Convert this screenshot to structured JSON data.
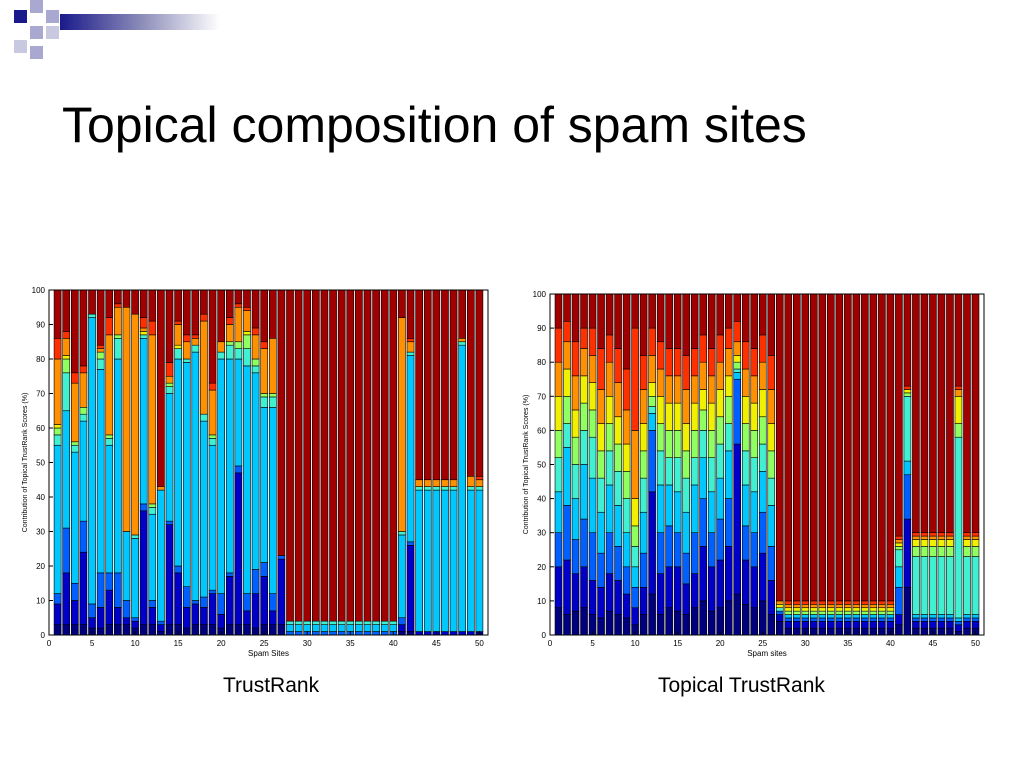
{
  "slide": {
    "title": "Topical composition of spam sites",
    "template_colors": {
      "dark": "#1a1a8c",
      "mid": "#8a8ab8",
      "light": "#c0c0dc"
    }
  },
  "chart_data": [
    {
      "type": "bar",
      "stacked": true,
      "title": "",
      "caption": "TrustRank",
      "xlabel": "Spam Sites",
      "ylabel": "Contribution of Topical TrustRank Scores (%)",
      "ylim": [
        0,
        100
      ],
      "xlim": [
        0,
        51
      ],
      "xticks": [
        0,
        5,
        10,
        15,
        20,
        25,
        30,
        35,
        40,
        45,
        50
      ],
      "yticks": [
        0,
        10,
        20,
        30,
        40,
        50,
        60,
        70,
        80,
        90,
        100
      ],
      "grid": false,
      "colors": [
        "#00007f",
        "#0000c8",
        "#0060ff",
        "#00c8ff",
        "#40f0d0",
        "#90ff60",
        "#f0f000",
        "#ff9000",
        "#ff3000",
        "#a00000"
      ],
      "x": [
        1,
        2,
        3,
        4,
        5,
        6,
        7,
        8,
        9,
        10,
        11,
        12,
        13,
        14,
        15,
        16,
        17,
        18,
        19,
        20,
        21,
        22,
        23,
        24,
        25,
        26,
        27,
        28,
        29,
        30,
        31,
        32,
        33,
        34,
        35,
        36,
        37,
        38,
        39,
        40,
        41,
        42,
        43,
        44,
        45,
        46,
        47,
        48,
        49,
        50
      ],
      "cumulative": [
        [
          3,
          3,
          3,
          3,
          2,
          2,
          3,
          3,
          3,
          2,
          3,
          3,
          1,
          3,
          3,
          2,
          3,
          3,
          3,
          2,
          3,
          3,
          3,
          2,
          3,
          3,
          3,
          0,
          0,
          0,
          0,
          0,
          0,
          0,
          0,
          0,
          0,
          0,
          0,
          0,
          1,
          1,
          0,
          0,
          0,
          0,
          0,
          0,
          0,
          1
        ],
        [
          9,
          18,
          10,
          24,
          5,
          8,
          13,
          8,
          5,
          4,
          36,
          8,
          3,
          32,
          18,
          8,
          9,
          8,
          12,
          6,
          17,
          47,
          7,
          12,
          17,
          7,
          22,
          0,
          0,
          0,
          0,
          0,
          0,
          0,
          0,
          0,
          0,
          0,
          0,
          0,
          3,
          26,
          1,
          1,
          1,
          1,
          1,
          1,
          1,
          1
        ],
        [
          12,
          31,
          15,
          33,
          9,
          18,
          18,
          18,
          10,
          5,
          38,
          10,
          4,
          33,
          20,
          14,
          10,
          11,
          13,
          12,
          18,
          49,
          12,
          19,
          21,
          12,
          23,
          1,
          1,
          1,
          1,
          1,
          1,
          1,
          1,
          1,
          1,
          1,
          1,
          1,
          5,
          27,
          1,
          1,
          1,
          1,
          1,
          1,
          1,
          1
        ],
        [
          55,
          65,
          53,
          62,
          92,
          77,
          55,
          80,
          30,
          28,
          86,
          35,
          42,
          70,
          80,
          79,
          82,
          62,
          55,
          80,
          80,
          80,
          78,
          76,
          66,
          66,
          1,
          3,
          3,
          3,
          3,
          3,
          3,
          3,
          3,
          3,
          3,
          3,
          3,
          3,
          29,
          81,
          42,
          42,
          42,
          42,
          42,
          84,
          42,
          42
        ],
        [
          58,
          76,
          55,
          64,
          93,
          80,
          57,
          86,
          30,
          29,
          87,
          37,
          42,
          72,
          83,
          80,
          84,
          64,
          57,
          82,
          84,
          83,
          83,
          78,
          69,
          69,
          2,
          4,
          4,
          4,
          4,
          4,
          4,
          4,
          4,
          4,
          4,
          4,
          4,
          4,
          30,
          82,
          43,
          43,
          43,
          43,
          43,
          85,
          43,
          43
        ],
        [
          60,
          80,
          56,
          66,
          93,
          82,
          58,
          87,
          30,
          29,
          87,
          38,
          42,
          73,
          83,
          80,
          84,
          64,
          58,
          82,
          85,
          85,
          87,
          80,
          70,
          70,
          3,
          4,
          4,
          4,
          4,
          4,
          4,
          4,
          4,
          4,
          4,
          4,
          4,
          4,
          30,
          82,
          43,
          43,
          43,
          43,
          43,
          85,
          43,
          43
        ],
        [
          61,
          81,
          56,
          66,
          93,
          82,
          58,
          87,
          30,
          29,
          88,
          38,
          42,
          73,
          84,
          80,
          84,
          64,
          58,
          82,
          85,
          85,
          88,
          80,
          70,
          70,
          3,
          4,
          4,
          4,
          4,
          4,
          4,
          4,
          4,
          4,
          4,
          4,
          4,
          4,
          30,
          82,
          43,
          43,
          43,
          43,
          43,
          85,
          43,
          43
        ],
        [
          80,
          86,
          73,
          76,
          93,
          83,
          87,
          95,
          95,
          93,
          89,
          87,
          43,
          75,
          90,
          85,
          86,
          91,
          71,
          85,
          90,
          95,
          94,
          87,
          83,
          86,
          4,
          4,
          4,
          4,
          4,
          4,
          4,
          4,
          4,
          4,
          4,
          4,
          4,
          4,
          92,
          85,
          45,
          45,
          45,
          45,
          45,
          86,
          46,
          45
        ],
        [
          86,
          88,
          76,
          78,
          93,
          84,
          92,
          96,
          95,
          93,
          92,
          91,
          43,
          79,
          91,
          87,
          87,
          93,
          73,
          85,
          92,
          96,
          95,
          89,
          85,
          86,
          4,
          4,
          4,
          4,
          4,
          4,
          4,
          4,
          4,
          4,
          4,
          4,
          4,
          4,
          92,
          86,
          45,
          45,
          45,
          45,
          45,
          86,
          46,
          46
        ],
        [
          100,
          100,
          100,
          100,
          100,
          100,
          100,
          100,
          100,
          100,
          100,
          100,
          100,
          100,
          100,
          100,
          100,
          100,
          100,
          100,
          100,
          100,
          100,
          100,
          100,
          100,
          100,
          100,
          100,
          100,
          100,
          100,
          100,
          100,
          100,
          100,
          100,
          100,
          100,
          100,
          100,
          100,
          100,
          100,
          100,
          100,
          100,
          100,
          100,
          100
        ]
      ]
    },
    {
      "type": "bar",
      "stacked": true,
      "title": "",
      "caption": "Topical TrustRank",
      "xlabel": "Spam sites",
      "ylabel": "Contribution of Topical TrustRank Scores (%)",
      "ylim": [
        0,
        100
      ],
      "xlim": [
        0,
        51
      ],
      "xticks": [
        0,
        5,
        10,
        15,
        20,
        25,
        30,
        35,
        40,
        45,
        50
      ],
      "yticks": [
        0,
        10,
        20,
        30,
        40,
        50,
        60,
        70,
        80,
        90,
        100
      ],
      "grid": false,
      "colors": [
        "#00007f",
        "#0000c8",
        "#0060ff",
        "#00c8ff",
        "#40f0d0",
        "#90ff60",
        "#f0f000",
        "#ff9000",
        "#ff3000",
        "#a00000"
      ],
      "x": [
        1,
        2,
        3,
        4,
        5,
        6,
        7,
        8,
        9,
        10,
        11,
        12,
        13,
        14,
        15,
        16,
        17,
        18,
        19,
        20,
        21,
        22,
        23,
        24,
        25,
        26,
        27,
        28,
        29,
        30,
        31,
        32,
        33,
        34,
        35,
        36,
        37,
        38,
        39,
        40,
        41,
        42,
        43,
        44,
        45,
        46,
        47,
        48,
        49,
        50
      ],
      "cumulative": [
        [
          8,
          6,
          7,
          8,
          6,
          5,
          7,
          6,
          5,
          3,
          6,
          12,
          6,
          8,
          7,
          6,
          8,
          10,
          7,
          8,
          10,
          12,
          9,
          8,
          10,
          6,
          4,
          2,
          2,
          2,
          2,
          2,
          2,
          2,
          2,
          2,
          2,
          2,
          2,
          2,
          3,
          14,
          2,
          2,
          2,
          2,
          2,
          1,
          2,
          2
        ],
        [
          20,
          22,
          18,
          20,
          16,
          14,
          18,
          16,
          12,
          8,
          14,
          42,
          18,
          20,
          20,
          15,
          18,
          26,
          20,
          22,
          26,
          56,
          22,
          20,
          24,
          16,
          6,
          4,
          4,
          4,
          4,
          4,
          4,
          4,
          4,
          4,
          4,
          4,
          4,
          4,
          6,
          34,
          4,
          4,
          4,
          4,
          4,
          3,
          4,
          4
        ],
        [
          30,
          38,
          28,
          34,
          30,
          24,
          30,
          26,
          20,
          14,
          24,
          60,
          30,
          32,
          30,
          24,
          30,
          40,
          30,
          34,
          40,
          75,
          32,
          30,
          36,
          26,
          7,
          5,
          5,
          5,
          5,
          5,
          5,
          5,
          5,
          5,
          5,
          5,
          5,
          5,
          14,
          47,
          5,
          5,
          5,
          5,
          5,
          4,
          5,
          5
        ],
        [
          42,
          55,
          40,
          50,
          46,
          36,
          44,
          38,
          30,
          20,
          36,
          65,
          44,
          44,
          42,
          36,
          44,
          52,
          42,
          46,
          54,
          77,
          44,
          42,
          48,
          38,
          7,
          6,
          6,
          6,
          6,
          6,
          6,
          6,
          6,
          6,
          6,
          6,
          6,
          6,
          20,
          51,
          6,
          6,
          6,
          6,
          6,
          5,
          6,
          6
        ],
        [
          52,
          62,
          50,
          60,
          58,
          46,
          54,
          48,
          40,
          26,
          46,
          67,
          54,
          52,
          52,
          46,
          52,
          60,
          52,
          56,
          62,
          78,
          54,
          52,
          56,
          46,
          8,
          6,
          6,
          6,
          6,
          6,
          6,
          6,
          6,
          6,
          6,
          6,
          6,
          6,
          25,
          70,
          23,
          23,
          23,
          23,
          23,
          58,
          23,
          23
        ],
        [
          60,
          70,
          58,
          68,
          66,
          54,
          62,
          56,
          48,
          32,
          54,
          70,
          62,
          60,
          60,
          54,
          60,
          66,
          60,
          64,
          70,
          80,
          62,
          60,
          64,
          54,
          8,
          7,
          7,
          7,
          7,
          7,
          7,
          7,
          7,
          7,
          7,
          7,
          7,
          7,
          26,
          71,
          26,
          26,
          26,
          26,
          26,
          62,
          26,
          26
        ],
        [
          70,
          78,
          66,
          76,
          74,
          62,
          70,
          64,
          56,
          40,
          62,
          74,
          70,
          68,
          68,
          62,
          68,
          72,
          68,
          72,
          76,
          82,
          70,
          68,
          72,
          62,
          9,
          8,
          8,
          8,
          8,
          8,
          8,
          8,
          8,
          8,
          8,
          8,
          8,
          8,
          27,
          72,
          28,
          28,
          28,
          28,
          28,
          70,
          28,
          28
        ],
        [
          80,
          86,
          76,
          84,
          82,
          72,
          80,
          74,
          66,
          60,
          72,
          82,
          78,
          76,
          76,
          72,
          76,
          80,
          76,
          80,
          84,
          86,
          78,
          76,
          80,
          72,
          10,
          9,
          9,
          9,
          9,
          9,
          9,
          9,
          9,
          9,
          9,
          9,
          9,
          9,
          28,
          72,
          29,
          29,
          29,
          29,
          29,
          72,
          29,
          29
        ],
        [
          90,
          92,
          86,
          90,
          90,
          84,
          88,
          84,
          78,
          90,
          82,
          90,
          86,
          84,
          84,
          82,
          84,
          88,
          84,
          88,
          90,
          92,
          86,
          84,
          88,
          82,
          10,
          10,
          10,
          10,
          10,
          10,
          10,
          10,
          10,
          10,
          10,
          10,
          10,
          10,
          29,
          73,
          30,
          30,
          30,
          30,
          30,
          73,
          30,
          30
        ],
        [
          100,
          100,
          100,
          100,
          100,
          100,
          100,
          100,
          100,
          100,
          100,
          100,
          100,
          100,
          100,
          100,
          100,
          100,
          100,
          100,
          100,
          100,
          100,
          100,
          100,
          100,
          100,
          100,
          100,
          100,
          100,
          100,
          100,
          100,
          100,
          100,
          100,
          100,
          100,
          100,
          100,
          100,
          100,
          100,
          100,
          100,
          100,
          100,
          100,
          100
        ]
      ]
    }
  ]
}
